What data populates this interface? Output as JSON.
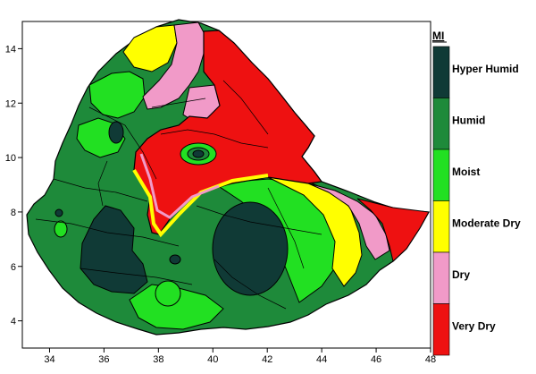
{
  "map": {
    "x_axis": {
      "min": 33,
      "max": 48,
      "ticks": [
        34,
        36,
        38,
        40,
        42,
        44,
        46,
        48
      ]
    },
    "y_axis": {
      "min": 3,
      "max": 15,
      "ticks": [
        4,
        6,
        8,
        10,
        12,
        14
      ]
    }
  },
  "legend": {
    "title": "MI",
    "classes": [
      {
        "id": "hyper-humid",
        "label": "Hyper Humid",
        "color": "#103a36"
      },
      {
        "id": "humid",
        "label": "Humid",
        "color": "#1e8a3a"
      },
      {
        "id": "moist",
        "label": "Moist",
        "color": "#22e022"
      },
      {
        "id": "moderate-dry",
        "label": "Moderate Dry",
        "color": "#ffff00"
      },
      {
        "id": "dry",
        "label": "Dry",
        "color": "#f19ac8"
      },
      {
        "id": "very-dry",
        "label": "Very Dry",
        "color": "#ee1111"
      }
    ]
  }
}
